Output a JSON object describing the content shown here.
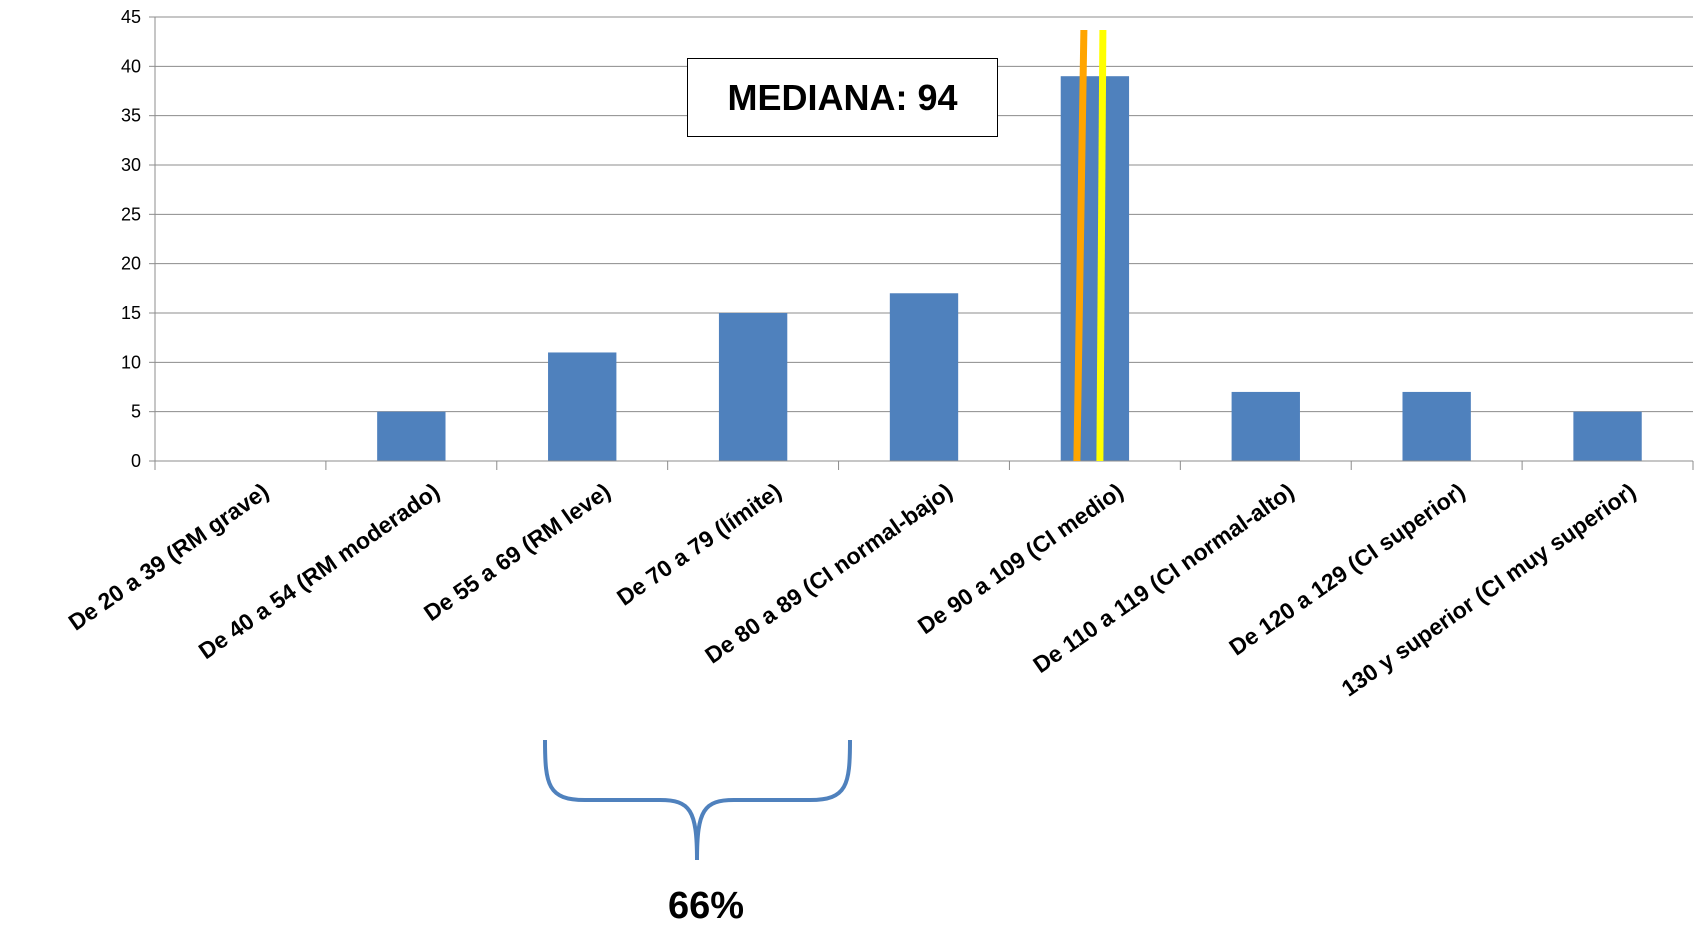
{
  "chart_data": {
    "type": "bar",
    "categories": [
      "De 20 a 39 (RM grave)",
      "De 40 a 54 (RM moderado)",
      "De 55 a 69 (RM leve)",
      "De 70 a 79 (límite)",
      "De 80 a 89 (CI normal-bajo)",
      "De 90 a 109 (CI medio)",
      "De 110 a 119 (CI normal-alto)",
      "De 120 a 129 (CI superior)",
      "130 y superior (CI muy superior)"
    ],
    "values": [
      0,
      5,
      11,
      15,
      17,
      39,
      7,
      7,
      5
    ],
    "ylim": [
      0,
      45
    ],
    "yticks": [
      0,
      5,
      10,
      15,
      20,
      25,
      30,
      35,
      40,
      45
    ],
    "grid": true,
    "bar_color": "#4f81bd",
    "annotations": {
      "median_label": "MEDIANA: 94",
      "median_line_colors": [
        "#ffa500",
        "#ffff00"
      ],
      "bracket_label": "66%",
      "bracket_color": "#4f81bd"
    }
  }
}
